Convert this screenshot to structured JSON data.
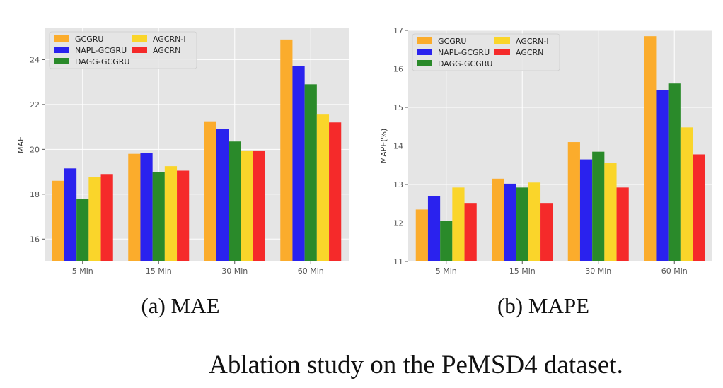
{
  "caption": "Ablation study on the PeMSD4 dataset.",
  "colors": {
    "GCGRU": "#fbac2c",
    "NAPL-GCGRU": "#2a22ee",
    "DAGG-GCGRU": "#2a8a2a",
    "AGCRN-I": "#fad52a",
    "AGCRN": "#f52a2a",
    "plot_bg": "#e5e5e5",
    "grid": "#ffffff"
  },
  "chart_data": [
    {
      "type": "bar",
      "subcaption": "(a) MAE",
      "ylabel": "MAE",
      "xlabel": "",
      "categories": [
        "5 Min",
        "15 Min",
        "30 Min",
        "60 Min"
      ],
      "ylim": [
        15,
        25.4
      ],
      "yticks": [
        16,
        18,
        20,
        22,
        24
      ],
      "grid": true,
      "legend": "top-left",
      "series": [
        {
          "name": "GCGRU",
          "values": [
            18.6,
            19.8,
            21.25,
            24.9
          ]
        },
        {
          "name": "NAPL-GCGRU",
          "values": [
            19.15,
            19.85,
            20.9,
            23.7
          ]
        },
        {
          "name": "DAGG-GCGRU",
          "values": [
            17.8,
            19.0,
            20.35,
            22.9
          ]
        },
        {
          "name": "AGCRN-I",
          "values": [
            18.75,
            19.25,
            19.95,
            21.55
          ]
        },
        {
          "name": "AGCRN",
          "values": [
            18.9,
            19.05,
            19.95,
            21.2
          ]
        }
      ]
    },
    {
      "type": "bar",
      "subcaption": "(b) MAPE",
      "ylabel": "MAPE(%)",
      "xlabel": "",
      "categories": [
        "5 Min",
        "15 Min",
        "30 Min",
        "60 Min"
      ],
      "ylim": [
        11,
        17
      ],
      "yticks": [
        11,
        12,
        13,
        14,
        15,
        16,
        17
      ],
      "grid": true,
      "legend": "top-left",
      "series": [
        {
          "name": "GCGRU",
          "values": [
            12.35,
            13.15,
            14.1,
            16.85
          ]
        },
        {
          "name": "NAPL-GCGRU",
          "values": [
            12.7,
            13.02,
            13.65,
            15.45
          ]
        },
        {
          "name": "DAGG-GCGRU",
          "values": [
            12.05,
            12.92,
            13.85,
            15.62
          ]
        },
        {
          "name": "AGCRN-I",
          "values": [
            12.92,
            13.05,
            13.55,
            14.48
          ]
        },
        {
          "name": "AGCRN",
          "values": [
            12.52,
            12.52,
            12.92,
            13.78
          ]
        }
      ]
    }
  ]
}
